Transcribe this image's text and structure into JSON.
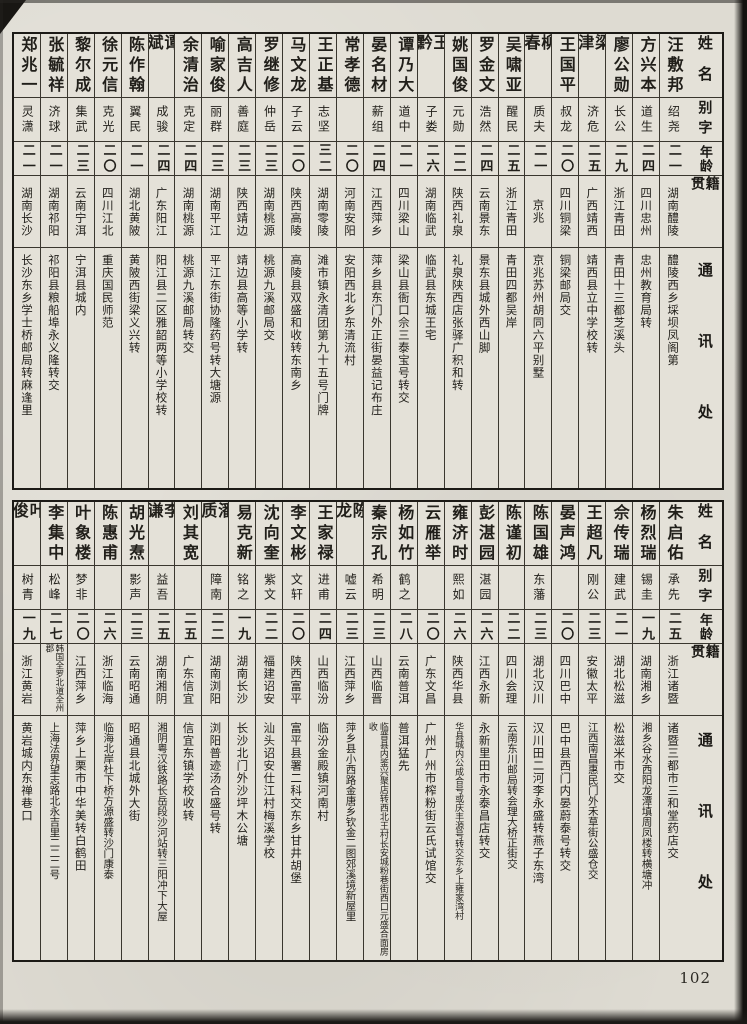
{
  "page": {
    "number": "102"
  },
  "headers": {
    "name": "姓名",
    "zi": "别字",
    "age": "年龄",
    "native": "籍贯",
    "address": "通讯处"
  },
  "tables": {
    "top": {
      "entries": [
        {
          "name": "汪敷邦",
          "zi": "绍尧",
          "age": "二一",
          "native": "湖南醴陵",
          "address": "醴陵西乡埰坝凤阁第"
        },
        {
          "name": "方兴本",
          "zi": "道生",
          "age": "二四",
          "native": "四川忠州",
          "address": "忠州教育局转"
        },
        {
          "name": "廖公勋",
          "zi": "长公",
          "age": "二九",
          "native": "浙江青田",
          "address": "青田十三都芝溪头"
        },
        {
          "name": "梁津",
          "zi": "济危",
          "age": "二五",
          "native": "广西靖西",
          "address": "靖西县立中学校转"
        },
        {
          "name": "王国平",
          "zi": "叔龙",
          "age": "二〇",
          "native": "四川铜梁",
          "address": "铜梁邮局交"
        },
        {
          "name": "柳春",
          "zi": "质夫",
          "age": "二一",
          "native": "京兆",
          "address": "京兆苏州胡同六平别墅"
        },
        {
          "name": "吴啸亚",
          "zi": "醒民",
          "age": "二五",
          "native": "浙江青田",
          "address": "青田四都吴岸"
        },
        {
          "name": "罗金文",
          "zi": "浩然",
          "age": "二四",
          "native": "云南景东",
          "address": "景东县城外西山脚"
        },
        {
          "name": "姚国俊",
          "zi": "元勋",
          "age": "二二",
          "native": "陕西礼泉",
          "address": "礼泉陕西店张驿广积和转"
        },
        {
          "name": "王黔",
          "zi": "子娄",
          "age": "二六",
          "native": "湖南临武",
          "address": "临武县东城王宅"
        },
        {
          "name": "谭乃大",
          "zi": "道中",
          "age": "二一",
          "native": "四川梁山",
          "address": "梁山县衙口佘三泰宝号转交"
        },
        {
          "name": "晏名材",
          "zi": "薪组",
          "age": "二四",
          "native": "江西萍乡",
          "address": "萍乡县东门外正街晏益记布庄"
        },
        {
          "name": "常孝德",
          "zi": "",
          "age": "二〇",
          "native": "河南安阳",
          "address": "安阳西北乡东清流村"
        },
        {
          "name": "王正基",
          "zi": "志坚",
          "age": "三二",
          "native": "湖南零陵",
          "address": "滩市镇永清团第九十五号门牌"
        },
        {
          "name": "马文龙",
          "zi": "子云",
          "age": "二〇",
          "native": "陕西高陵",
          "address": "高陵县双盛和收转东南乡"
        },
        {
          "name": "罗继修",
          "zi": "仲岳",
          "age": "二三",
          "native": "湖南桃源",
          "address": "桃源九溪邮局交"
        },
        {
          "name": "高吉人",
          "zi": "善庭",
          "age": "二三",
          "native": "陕西靖边",
          "address": "靖边县高等小学转"
        },
        {
          "name": "喻家俊",
          "zi": "丽群",
          "age": "二三",
          "native": "湖南平江",
          "address": "平江东街协隆药号转大塘源"
        },
        {
          "name": "余清治",
          "zi": "克定",
          "age": "二四",
          "native": "湖南桃源",
          "address": "桃源九溪邮局转交"
        },
        {
          "name": "谭斌",
          "zi": "成骏",
          "age": "二四",
          "native": "广东阳江",
          "address": "阳江县二区雅韶两等小学校转"
        },
        {
          "name": "陈作翰",
          "zi": "翼民",
          "age": "二一",
          "native": "湖北黄陂",
          "address": "黄陂西街梁义兴转"
        },
        {
          "name": "徐元信",
          "zi": "克光",
          "age": "二〇",
          "native": "四川江北",
          "address": "重庆国民师范"
        },
        {
          "name": "黎尔成",
          "zi": "集武",
          "age": "二三",
          "native": "云南宁洱",
          "address": "宁洱县城内"
        },
        {
          "name": "张毓祥",
          "zi": "济球",
          "age": "二一",
          "native": "湖南祁阳",
          "address": "祁阳县粮船埠永义隆转交"
        },
        {
          "name": "郑兆一",
          "zi": "灵潇",
          "age": "二一",
          "native": "湖南长沙",
          "address": "长沙东乡学士桥邮局转麻逢里"
        }
      ]
    },
    "bottom": {
      "entries": [
        {
          "name": "朱启佑",
          "zi": "承先",
          "age": "二五",
          "native": "浙江诸暨",
          "address": "诸暨三都市三和堂药店交"
        },
        {
          "name": "杨烈瑞",
          "zi": "锡圭",
          "age": "一九",
          "native": "湖南湘乡",
          "address": "湘乡谷水西阳龙潭填周凤楼转横塘冲"
        },
        {
          "name": "佘传瑞",
          "zi": "建武",
          "age": "二一",
          "native": "湖北松滋",
          "address": "松滋米市交"
        },
        {
          "name": "王超凡",
          "zi": "刚公",
          "age": "二三",
          "native": "安徽太平",
          "address": "江西南昌惠民门外禾草街公盛仓交"
        },
        {
          "name": "晏声鸿",
          "zi": "",
          "age": "二〇",
          "native": "四川巴中",
          "address": "巴中县西门内晏蔚泰号转交"
        },
        {
          "name": "陈国雄",
          "zi": "东藩",
          "age": "二三",
          "native": "湖北汉川",
          "address": "汉川田二河李永盛转燕子东湾"
        },
        {
          "name": "陈谨初",
          "zi": "",
          "age": "二二",
          "native": "四川会理",
          "address": "云南东川邮局转会理大桥正街交"
        },
        {
          "name": "彭湛园",
          "zi": "湛园",
          "age": "二六",
          "native": "江西永新",
          "address": "永新里田市永泰昌店转交"
        },
        {
          "name": "雍济时",
          "zi": "熙如",
          "age": "二六",
          "native": "陕西华县",
          "address": "华县城内公成合号或庆丰源号转交东乡上雍家湾村"
        },
        {
          "name": "云雁举",
          "zi": "",
          "age": "二〇",
          "native": "广东文昌",
          "address": "广州广州市榨粉街云氏试馆交"
        },
        {
          "name": "杨如竹",
          "zi": "鹤之",
          "age": "二八",
          "native": "云南普洱",
          "address": "普洱猛先"
        },
        {
          "name": "秦宗孔",
          "zi": "希明",
          "age": "二三",
          "native": "山西临晋",
          "address": "临晋县内鉴兴聚店转西北王村长安城粉巷街西口元盛合面房收"
        },
        {
          "name": "陈龙",
          "zi": "嘘云",
          "age": "二三",
          "native": "江西萍乡",
          "address": "萍乡县小西路金唐乡钦金二图郊溪境新屋里"
        },
        {
          "name": "王家禄",
          "zi": "进甫",
          "age": "二四",
          "native": "山西临汾",
          "address": "临汾金殿镇河南村"
        },
        {
          "name": "李文彬",
          "zi": "文轩",
          "age": "二〇",
          "native": "陕西富平",
          "address": "富平县署二科交东乡甘井胡堡"
        },
        {
          "name": "沈向奎",
          "zi": "紫文",
          "age": "二二",
          "native": "福建诏安",
          "address": "汕头诏安仕江村梅溪学校"
        },
        {
          "name": "易克新",
          "zi": "铭之",
          "age": "一九",
          "native": "湖南长沙",
          "address": "长沙北门外沙坪木公塘"
        },
        {
          "name": "潘质",
          "zi": "障南",
          "age": "二二",
          "native": "湖南浏阳",
          "address": "浏阳普迹汤合盛号转"
        },
        {
          "name": "刘其宽",
          "zi": "",
          "age": "二五",
          "native": "广东信宜",
          "address": "信宜东镇学校收转"
        },
        {
          "name": "李谦",
          "zi": "益吾",
          "age": "二五",
          "native": "湖南湘阴",
          "address": "湘阴粤汉铁路长岳段沙河站转三阳冲下大屋"
        },
        {
          "name": "胡光焘",
          "zi": "影声",
          "age": "二三",
          "native": "云南昭通",
          "address": "昭通县北城外大街"
        },
        {
          "name": "陈惠甫",
          "zi": "",
          "age": "二六",
          "native": "浙江临海",
          "address": "临海北岸杜下桥方源盛转沙门康泰"
        },
        {
          "name": "叶象楼",
          "zi": "梦非",
          "age": "二〇",
          "native": "江西萍乡",
          "address": "萍乡上栗市中华美转白鹤田"
        },
        {
          "name": "李集中",
          "zi": "松峰",
          "age": "二七",
          "native": "韩国全罗北道全州郡",
          "address": "上海法界望志路北永吉里二二二号"
        },
        {
          "name": "叶俊",
          "zi": "树青",
          "age": "一九",
          "native": "浙江黄岩",
          "address": "黄岩城内东禅巷口"
        }
      ]
    }
  }
}
